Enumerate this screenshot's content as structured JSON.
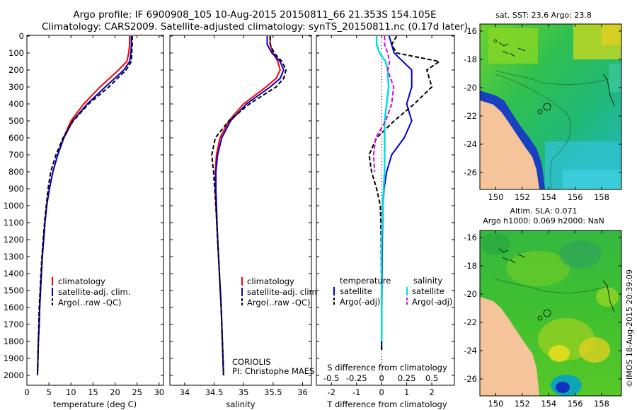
{
  "header": {
    "title_line1": "Argo profile: IF 6900908_105 10-Aug-2015 20150811_66 21.353S 154.105E",
    "title_line2": "Climatology: CARS2009. Satellite-adjusted climatology: synTS_20150811.nc (0.17d later)"
  },
  "colors": {
    "climatology": "#ff0000",
    "satellite": "#0000cc",
    "argo": "#000000",
    "salinity_satellite": "#00dddd",
    "salinity_argo": "#dd00dd"
  },
  "labels": {
    "temp_xlabel": "temperature (deg C)",
    "sal_xlabel": "salinity",
    "diff_xlabel": "T difference from climatology",
    "diff_toplabel": "S difference from climatology",
    "legend_climatology": "climatology",
    "legend_satellite": "satellite-adj. clim.",
    "legend_argo": "Argo(..raw -QC)",
    "diff_legend_temperature": "temperature",
    "diff_legend_salinity": "salinity",
    "diff_legend_satellite": "satellite",
    "diff_legend_argo": "Argo(-adj)",
    "coriolis": "CORIOLIS",
    "pi": "PI: Christophe MAES",
    "sst_title": "sat. SST: 23.6  Argo: 23.8",
    "sla_title1": "Altim. SLA: 0.071",
    "sla_title2": "Argo h1000: 0.069  h2000: NaN",
    "imos": "©IMOS 18-Aug-2015 20:39:09"
  },
  "chart_data": [
    {
      "type": "line",
      "name": "temperature-profile",
      "xlabel": "temperature (deg C)",
      "ylabel": "",
      "xlim": [
        0,
        31
      ],
      "ylim": [
        2050,
        0
      ],
      "xticks": [
        "0",
        "5",
        "10",
        "15",
        "20",
        "25",
        "30"
      ],
      "yticks": [
        "0",
        "100",
        "200",
        "300",
        "400",
        "500",
        "600",
        "700",
        "800",
        "900",
        "1000",
        "1100",
        "1200",
        "1300",
        "1400",
        "1500",
        "1600",
        "1700",
        "1800",
        "1900",
        "2000"
      ],
      "series": [
        {
          "name": "climatology",
          "depth": [
            0,
            50,
            100,
            150,
            200,
            300,
            400,
            500,
            600,
            700,
            800,
            900,
            1000,
            1100,
            1200,
            1300,
            1400,
            1500,
            1600,
            1700,
            1800,
            1900,
            2000
          ],
          "values": [
            23.3,
            23.3,
            23.1,
            22.7,
            20.8,
            16.6,
            12.9,
            10.0,
            8.3,
            7.0,
            5.9,
            5.1,
            4.5,
            4.1,
            3.8,
            3.5,
            3.3,
            3.1,
            2.9,
            2.8,
            2.6,
            2.5,
            2.4
          ]
        },
        {
          "name": "satellite-adj. clim.",
          "depth": [
            0,
            50,
            100,
            150,
            200,
            300,
            400,
            500,
            600,
            700,
            800,
            900,
            1000,
            1100,
            1200,
            1300,
            1400,
            1500,
            1600,
            1700,
            1800,
            1900,
            2000
          ],
          "values": [
            23.7,
            23.7,
            23.6,
            23.3,
            22.0,
            17.8,
            13.7,
            10.4,
            8.4,
            7.0,
            5.9,
            5.1,
            4.5,
            4.1,
            3.8,
            3.5,
            3.3,
            3.1,
            2.9,
            2.8,
            2.6,
            2.5,
            2.4
          ]
        },
        {
          "name": "Argo(..raw -QC)",
          "depth": [
            0,
            50,
            100,
            150,
            200,
            300,
            400,
            500,
            600,
            700,
            800,
            900,
            1000,
            1100,
            1200,
            1300,
            1400,
            1500,
            1600,
            1700,
            1800,
            1900,
            2000
          ],
          "values": [
            23.9,
            23.9,
            23.8,
            23.7,
            22.5,
            18.6,
            14.0,
            10.5,
            8.2,
            6.6,
            5.4,
            4.8,
            4.4,
            4.0,
            3.7,
            3.4,
            3.2,
            3.0,
            2.8,
            2.7,
            2.6,
            2.5,
            2.4
          ]
        }
      ]
    },
    {
      "type": "line",
      "name": "salinity-profile",
      "xlabel": "salinity",
      "xlim": [
        33.75,
        36.15
      ],
      "ylim": [
        2050,
        0
      ],
      "xticks": [
        "34",
        "34.5",
        "35",
        "35.5",
        "36"
      ],
      "series": [
        {
          "name": "climatology",
          "depth": [
            0,
            50,
            100,
            150,
            200,
            250,
            300,
            400,
            500,
            600,
            700,
            800,
            900,
            1000,
            1200,
            1400,
            1600,
            1800,
            2000
          ],
          "values": [
            35.45,
            35.45,
            35.5,
            35.58,
            35.62,
            35.55,
            35.38,
            35.0,
            34.75,
            34.6,
            34.54,
            34.52,
            34.52,
            34.53,
            34.56,
            34.59,
            34.62,
            34.64,
            34.66
          ]
        },
        {
          "name": "satellite-adj. clim.",
          "depth": [
            0,
            50,
            100,
            150,
            200,
            250,
            300,
            400,
            500,
            600,
            700,
            800,
            900,
            1000,
            1200,
            1400,
            1600,
            1800,
            2000
          ],
          "values": [
            35.4,
            35.4,
            35.48,
            35.62,
            35.68,
            35.62,
            35.45,
            35.05,
            34.78,
            34.63,
            34.56,
            34.53,
            34.53,
            34.54,
            34.56,
            34.59,
            34.62,
            34.64,
            34.66
          ]
        },
        {
          "name": "Argo(..raw -QC)",
          "depth": [
            0,
            50,
            100,
            150,
            200,
            250,
            300,
            400,
            500,
            600,
            700,
            800,
            900,
            1000,
            1200,
            1400,
            1600,
            1800,
            2000
          ],
          "values": [
            35.45,
            35.45,
            35.52,
            35.65,
            35.72,
            35.68,
            35.55,
            35.1,
            34.75,
            34.52,
            34.46,
            34.49,
            34.51,
            34.53,
            34.56,
            34.59,
            34.62,
            34.64,
            34.66
          ]
        }
      ]
    },
    {
      "type": "line",
      "name": "difference-profile",
      "xlabel": "T difference from climatology",
      "top_label": "S difference from climatology",
      "xlim": [
        -2.6,
        2.9
      ],
      "ylim": [
        2050,
        0
      ],
      "xticks": [
        "-2",
        "-1",
        "0",
        "1",
        "2"
      ],
      "top_xticks": [
        "-0.5",
        "-0.25",
        "0",
        "0.25",
        "0.5"
      ],
      "series": [
        {
          "name": "temperature satellite",
          "depth": [
            0,
            100,
            200,
            300,
            400,
            500,
            600,
            700,
            800,
            900,
            1000,
            1200,
            1400,
            1600,
            1800,
            1850
          ],
          "values": [
            0.3,
            0.5,
            1.2,
            1.2,
            1.0,
            1.2,
            0.9,
            0.4,
            0.2,
            0.1,
            0.05,
            0.03,
            0.02,
            0.01,
            0.0,
            0.0
          ]
        },
        {
          "name": "temperature Argo(-adj)",
          "depth": [
            0,
            50,
            100,
            150,
            200,
            300,
            400,
            500,
            600,
            700,
            800,
            900,
            1000,
            1200,
            1400,
            1600,
            1800,
            1850
          ],
          "values": [
            0.6,
            0.4,
            0.6,
            2.3,
            1.8,
            2.0,
            1.3,
            0.5,
            -0.2,
            -0.5,
            -0.4,
            -0.2,
            -0.05,
            -0.02,
            -0.01,
            0.0,
            0.0,
            0.0
          ]
        },
        {
          "name": "salinity satellite",
          "depth": [
            0,
            50,
            100,
            150,
            200,
            300,
            400,
            500,
            600,
            700,
            800,
            900,
            1000,
            1200,
            1400,
            1600,
            1800
          ],
          "values": [
            -0.05,
            -0.05,
            -0.02,
            0.04,
            0.06,
            0.07,
            0.05,
            0.03,
            0.03,
            0.03,
            0.03,
            0.02,
            0.01,
            0.0,
            0.0,
            0.0,
            0.0
          ]
        },
        {
          "name": "salinity Argo(-adj)",
          "depth": [
            0,
            50,
            100,
            150,
            200,
            300,
            400,
            500,
            600,
            700,
            800
          ],
          "values": [
            0.03,
            0.03,
            0.06,
            0.08,
            0.06,
            0.12,
            0.1,
            0.04,
            -0.06,
            -0.08,
            -0.07
          ]
        }
      ]
    },
    {
      "type": "heatmap",
      "name": "sst-map",
      "title": "sat. SST: 23.6  Argo: 23.8",
      "xlim": [
        148.8,
        159.5
      ],
      "ylim": [
        -27.2,
        -15.5
      ],
      "xticks": [
        "150",
        "152",
        "154",
        "156",
        "158"
      ],
      "yticks": [
        "-16",
        "-18",
        "-20",
        "-22",
        "-24",
        "-26"
      ]
    },
    {
      "type": "heatmap",
      "name": "sla-map",
      "title": "Altim. SLA: 0.071",
      "subtitle": "Argo h1000: 0.069  h2000: NaN",
      "xlim": [
        148.8,
        159.5
      ],
      "ylim": [
        -27.2,
        -15.5
      ],
      "xticks": [
        "150",
        "152",
        "154",
        "156",
        "158"
      ],
      "yticks": [
        "-16",
        "-18",
        "-20",
        "-22",
        "-24",
        "-26"
      ]
    }
  ]
}
